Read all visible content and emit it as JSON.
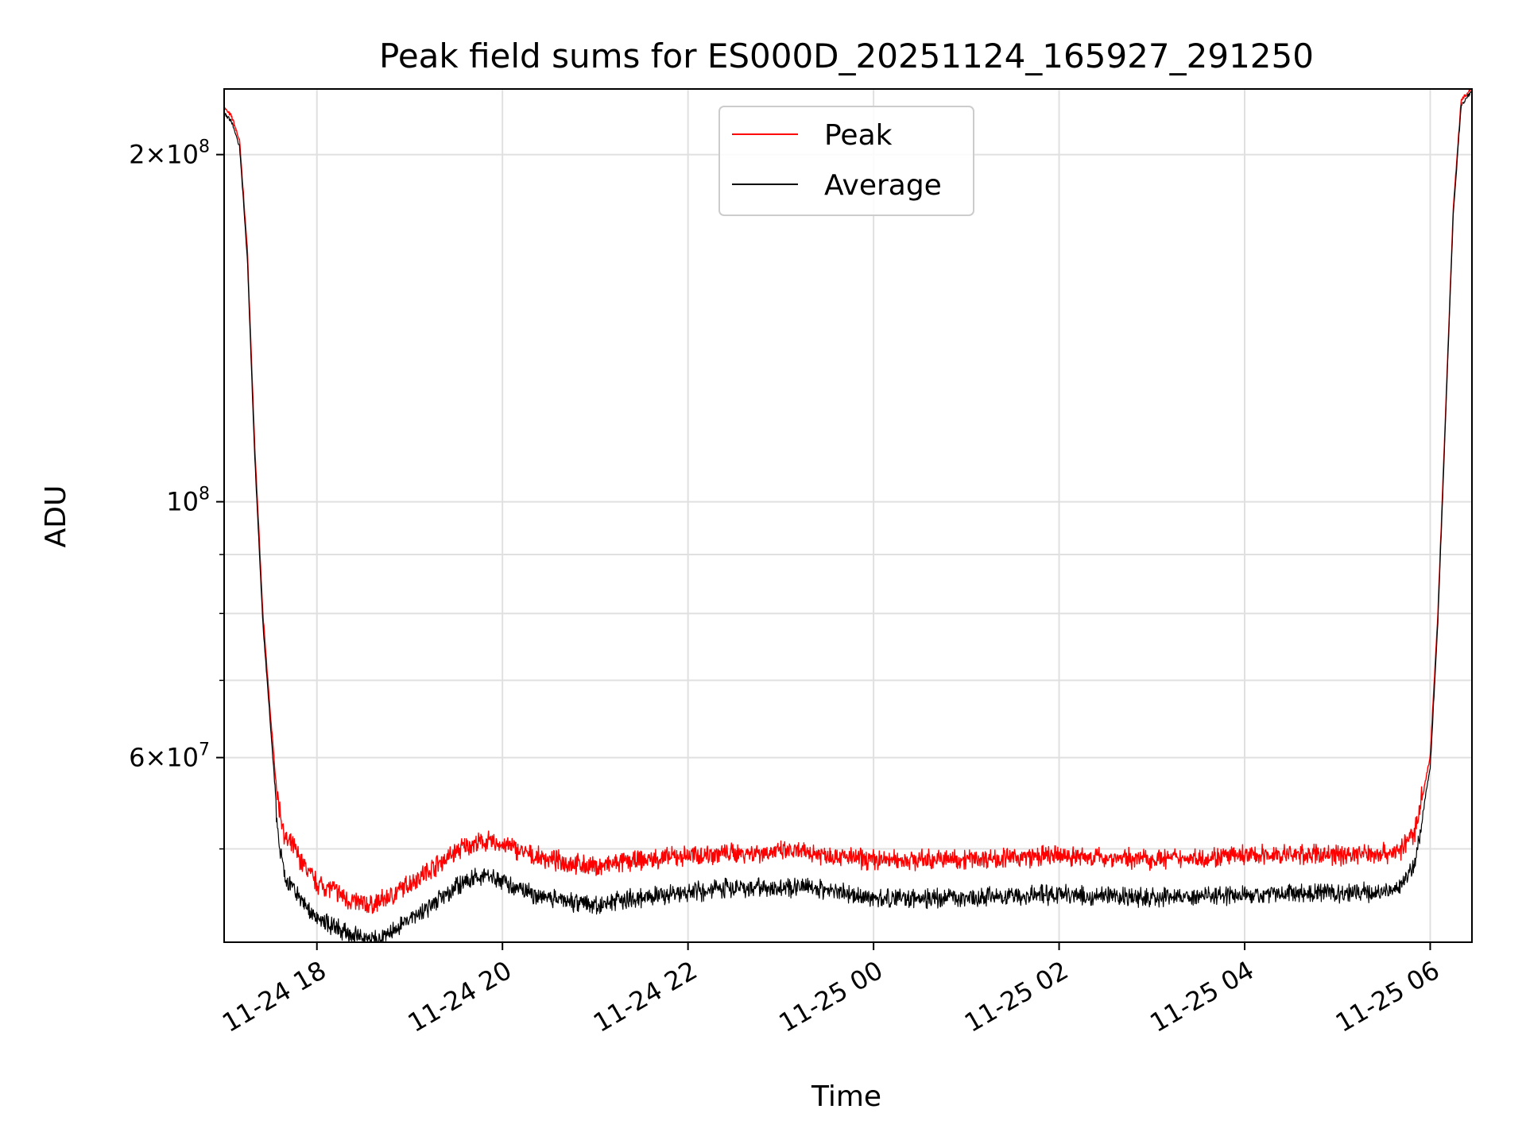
{
  "chart_data": {
    "type": "line",
    "title": "Peak field sums for ES000D_20251124_165927_291250",
    "xlabel": "Time",
    "ylabel": "ADU",
    "yscale": "log",
    "xlim": [
      "2025-11-24 17:00",
      "2025-11-25 06:27"
    ],
    "ylim": [
      41500000,
      228000000
    ],
    "grid": true,
    "legend_position": "top-center",
    "x_ticks": [
      "11-24 18",
      "11-24 20",
      "11-24 22",
      "11-25 00",
      "11-25 02",
      "11-25 04",
      "11-25 06"
    ],
    "y_ticks": [
      {
        "value": 200000000,
        "mantissa": "2",
        "exponent": "8"
      },
      {
        "value": 100000000,
        "mantissa": "",
        "exponent": "8"
      },
      {
        "value": 60000000,
        "mantissa": "6",
        "exponent": "7"
      }
    ],
    "series": [
      {
        "name": "Peak",
        "color": "#ff0000",
        "x": [
          "2025-11-24 17:00",
          "2025-11-24 17:05",
          "2025-11-24 17:10",
          "2025-11-24 17:15",
          "2025-11-24 17:20",
          "2025-11-24 17:25",
          "2025-11-24 17:30",
          "2025-11-24 17:35",
          "2025-11-24 17:40",
          "2025-11-24 17:45",
          "2025-11-24 17:50",
          "2025-11-24 18:00",
          "2025-11-24 18:10",
          "2025-11-24 18:20",
          "2025-11-24 18:35",
          "2025-11-24 18:50",
          "2025-11-24 19:05",
          "2025-11-24 19:20",
          "2025-11-24 19:35",
          "2025-11-24 19:50",
          "2025-11-24 20:05",
          "2025-11-24 20:20",
          "2025-11-24 20:40",
          "2025-11-24 21:00",
          "2025-11-24 21:20",
          "2025-11-24 21:40",
          "2025-11-24 22:00",
          "2025-11-24 22:20",
          "2025-11-24 22:40",
          "2025-11-24 23:00",
          "2025-11-24 23:20",
          "2025-11-24 23:40",
          "2025-11-25 00:00",
          "2025-11-25 00:30",
          "2025-11-25 01:00",
          "2025-11-25 01:30",
          "2025-11-25 02:00",
          "2025-11-25 02:30",
          "2025-11-25 03:00",
          "2025-11-25 03:30",
          "2025-11-25 04:00",
          "2025-11-25 04:30",
          "2025-11-25 05:00",
          "2025-11-25 05:20",
          "2025-11-25 05:40",
          "2025-11-25 05:50",
          "2025-11-25 06:00",
          "2025-11-25 06:05",
          "2025-11-25 06:10",
          "2025-11-25 06:15",
          "2025-11-25 06:20",
          "2025-11-25 06:27"
        ],
        "values": [
          219000000,
          215000000,
          205000000,
          165000000,
          110000000,
          80000000,
          65000000,
          54000000,
          50000000,
          49500000,
          48000000,
          46000000,
          45500000,
          44500000,
          44000000,
          45000000,
          46500000,
          48000000,
          49500000,
          50000000,
          49500000,
          48500000,
          48000000,
          47500000,
          48000000,
          48300000,
          48600000,
          48800000,
          48900000,
          49000000,
          48900000,
          48500000,
          48200000,
          48200000,
          48300000,
          48400000,
          48600000,
          48400000,
          48300000,
          48400000,
          48600000,
          48700000,
          48700000,
          48800000,
          49000000,
          51000000,
          60000000,
          80000000,
          120000000,
          180000000,
          222000000,
          228000000
        ]
      },
      {
        "name": "Average",
        "color": "#000000",
        "x": [
          "2025-11-24 17:00",
          "2025-11-24 17:05",
          "2025-11-24 17:10",
          "2025-11-24 17:15",
          "2025-11-24 17:20",
          "2025-11-24 17:25",
          "2025-11-24 17:30",
          "2025-11-24 17:35",
          "2025-11-24 17:40",
          "2025-11-24 17:45",
          "2025-11-24 17:50",
          "2025-11-24 18:00",
          "2025-11-24 18:10",
          "2025-11-24 18:20",
          "2025-11-24 18:35",
          "2025-11-24 18:50",
          "2025-11-24 19:05",
          "2025-11-24 19:20",
          "2025-11-24 19:35",
          "2025-11-24 19:50",
          "2025-11-24 20:05",
          "2025-11-24 20:20",
          "2025-11-24 20:40",
          "2025-11-24 21:00",
          "2025-11-24 21:20",
          "2025-11-24 21:40",
          "2025-11-24 22:00",
          "2025-11-24 22:20",
          "2025-11-24 22:40",
          "2025-11-24 23:00",
          "2025-11-24 23:20",
          "2025-11-24 23:40",
          "2025-11-25 00:00",
          "2025-11-25 00:30",
          "2025-11-25 01:00",
          "2025-11-25 01:30",
          "2025-11-25 02:00",
          "2025-11-25 02:30",
          "2025-11-25 03:00",
          "2025-11-25 03:30",
          "2025-11-25 04:00",
          "2025-11-25 04:30",
          "2025-11-25 05:00",
          "2025-11-25 05:20",
          "2025-11-25 05:40",
          "2025-11-25 05:50",
          "2025-11-25 06:00",
          "2025-11-25 06:05",
          "2025-11-25 06:10",
          "2025-11-25 06:15",
          "2025-11-25 06:20",
          "2025-11-25 06:27"
        ],
        "values": [
          218000000,
          214000000,
          204000000,
          163000000,
          108000000,
          79000000,
          64000000,
          52000000,
          47500000,
          47000000,
          46000000,
          44000000,
          43500000,
          42800000,
          42300000,
          43000000,
          44500000,
          46000000,
          47500000,
          48000000,
          47200000,
          46200000,
          45800000,
          45200000,
          45800000,
          46200000,
          46500000,
          46800000,
          46900000,
          47000000,
          46900000,
          46500000,
          46000000,
          45900000,
          46000000,
          46200000,
          46300000,
          46100000,
          46000000,
          46100000,
          46300000,
          46400000,
          46400000,
          46500000,
          46800000,
          49000000,
          59000000,
          79000000,
          119000000,
          179000000,
          221000000,
          228000000
        ]
      }
    ]
  }
}
